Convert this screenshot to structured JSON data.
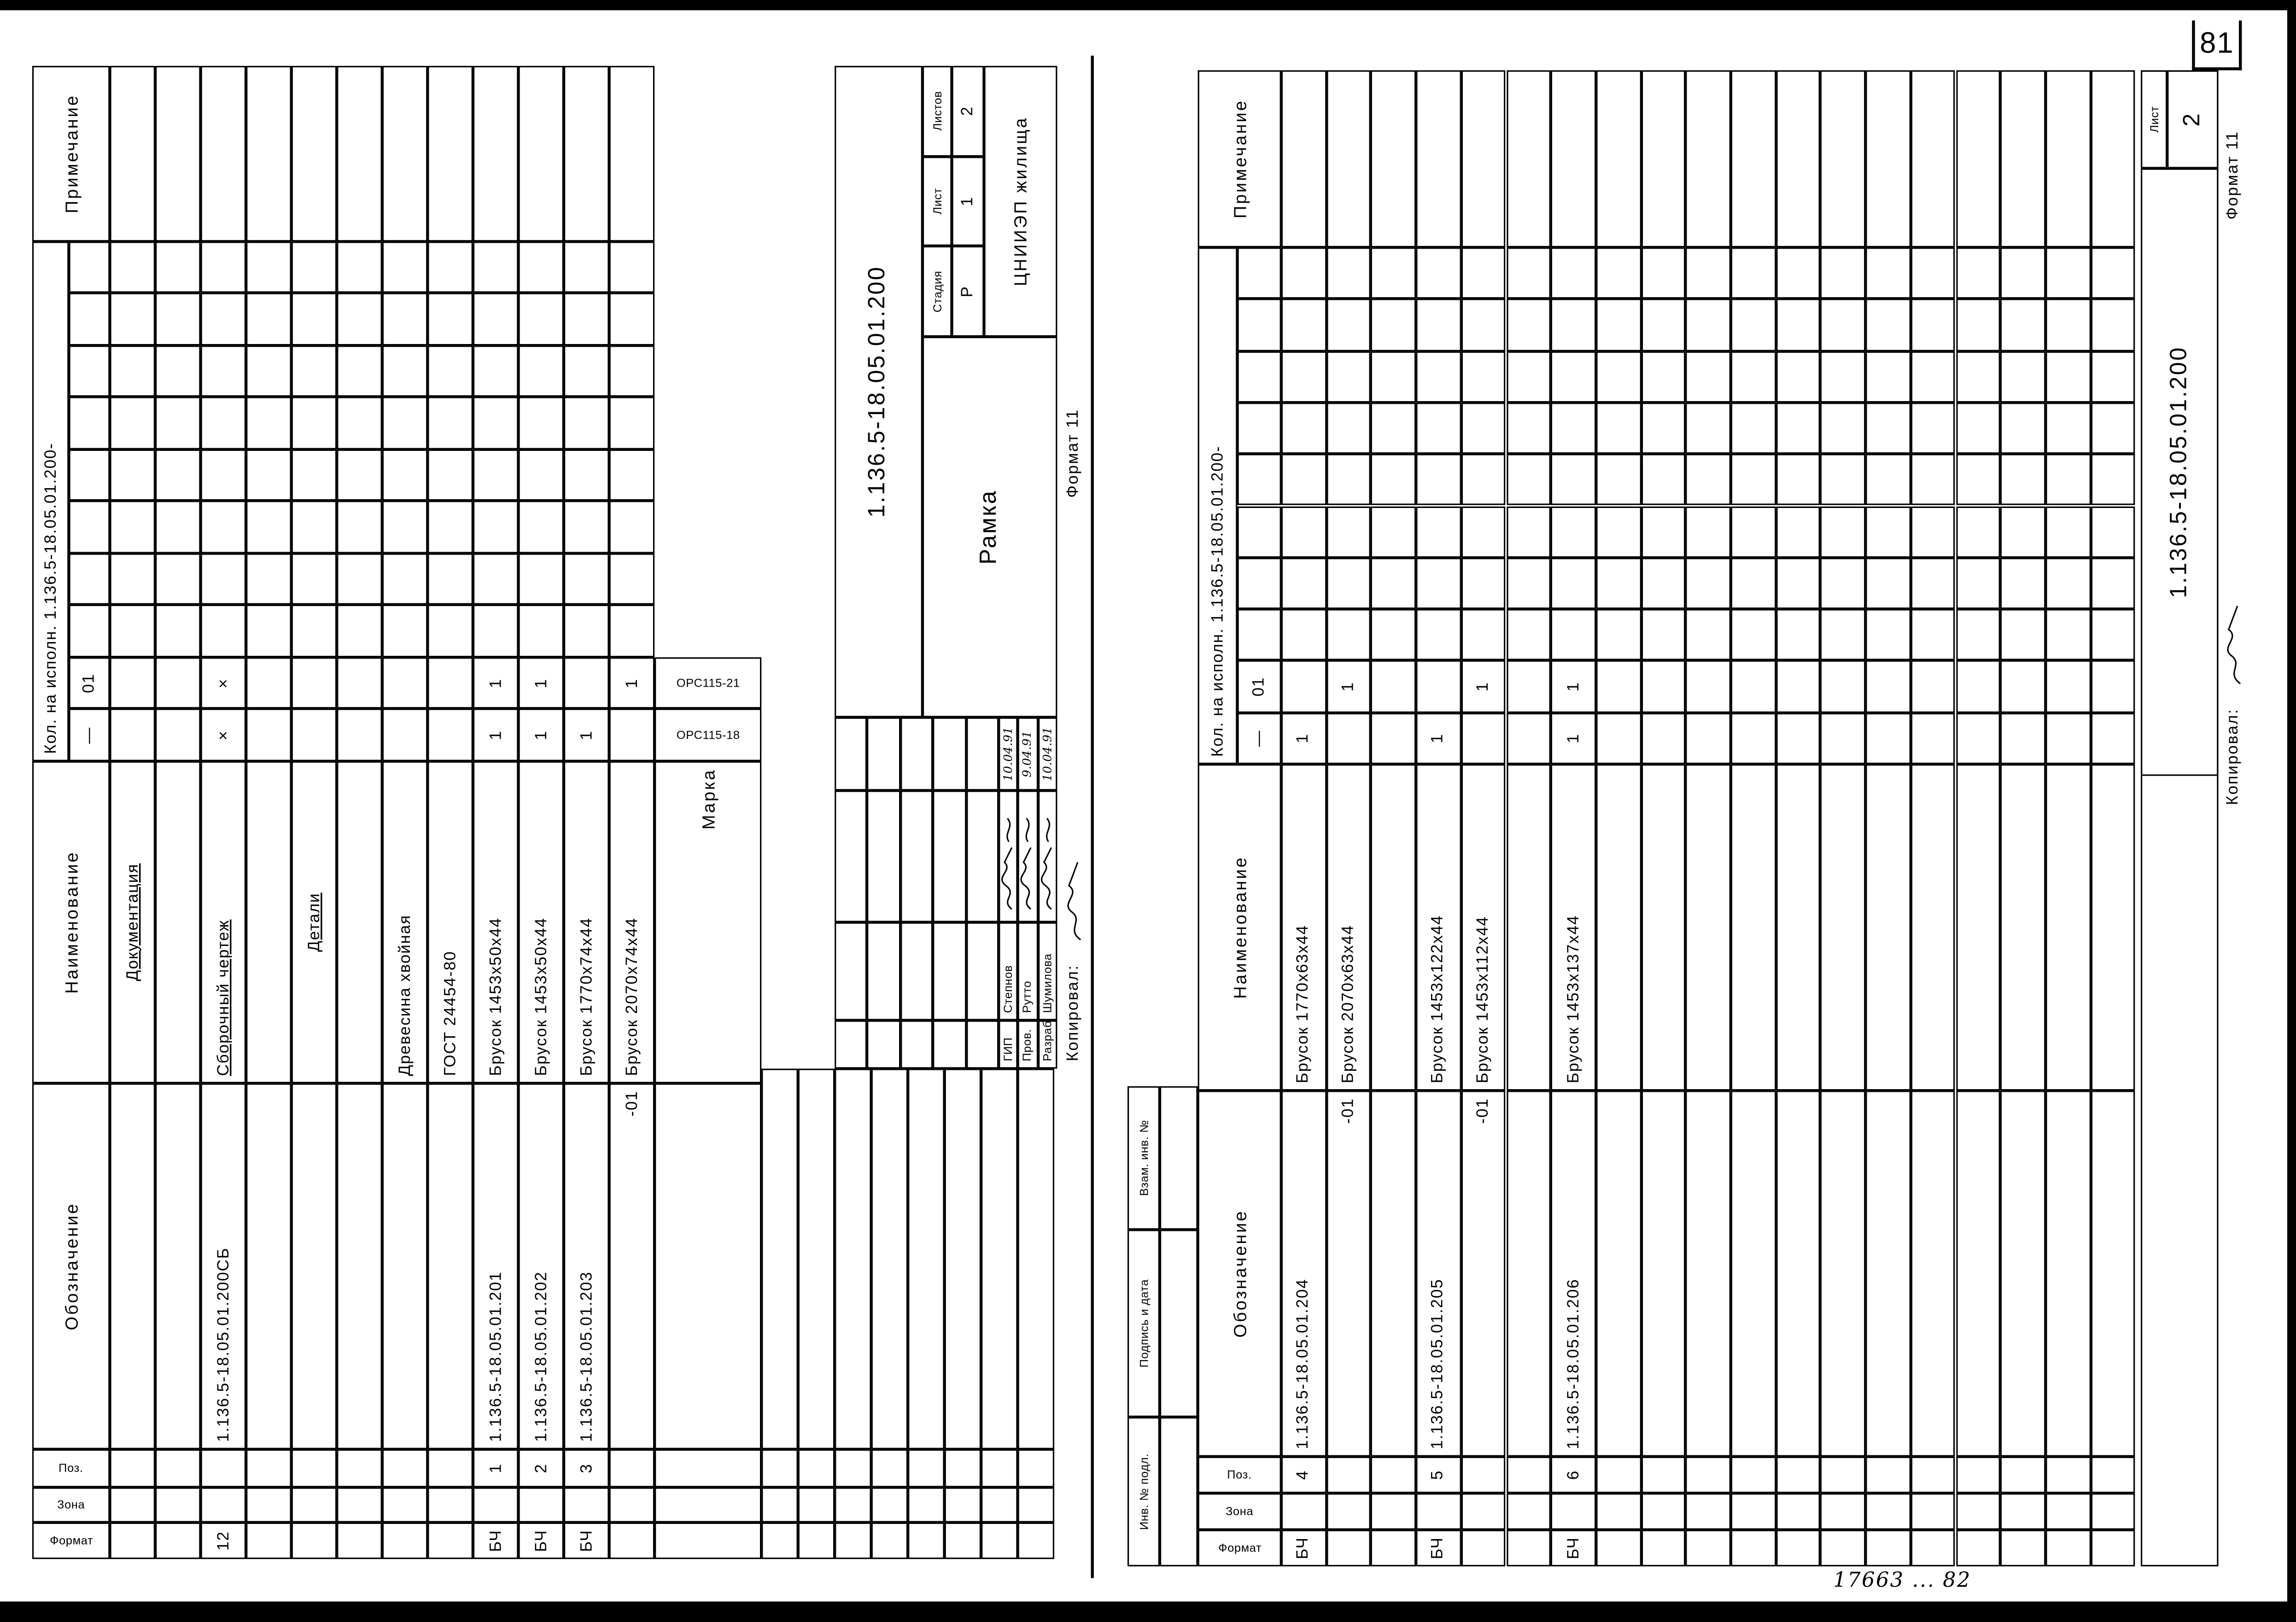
{
  "page_number": "81",
  "archive_number": "17663 ... 82",
  "left_sheet": {
    "headers": {
      "fmt": "Формат",
      "zone": "Зона",
      "pos": "Поз.",
      "designation": "Обозначение",
      "name": "Наименование",
      "qty": "Кол. на исполн. 1.136.5-18.05.01.200-",
      "qty_sub": [
        "—",
        "01"
      ],
      "note": "Примечание"
    },
    "rows": [
      {
        "name": "Документация",
        "underline": true,
        "center": true
      },
      {},
      {
        "fmt": "12",
        "des": "1.136.5-18.05.01.200СБ",
        "name": "Сборочный чертеж",
        "underline": true,
        "q": [
          "×",
          "×"
        ]
      },
      {},
      {
        "name": "Детали",
        "underline": true,
        "center": true
      },
      {},
      {
        "name": "Древесина хвойная"
      },
      {
        "name": "ГОСТ 24454-80"
      },
      {
        "fmt": "БЧ",
        "pos": "1",
        "des": "1.136.5-18.05.01.201",
        "name": "Брусок 1453x50x44",
        "q": [
          "1",
          "1"
        ]
      },
      {
        "fmt": "БЧ",
        "pos": "2",
        "des": "1.136.5-18.05.01.202",
        "name": "Брусок 1453x50x44",
        "q": [
          "1",
          "1"
        ]
      },
      {
        "fmt": "БЧ",
        "pos": "3",
        "des": "1.136.5-18.05.01.203",
        "name": "Брусок 1770x74x44",
        "q": [
          "1",
          ""
        ]
      },
      {
        "des": "-01",
        "des_right": true,
        "name": "Брусок 2070x74x44",
        "q": [
          "",
          "1"
        ]
      }
    ],
    "marka": {
      "label": "Марка",
      "values": [
        "ОРС115-18",
        "ОРС115-21"
      ]
    },
    "notes": {
      "copied": "Копировал:",
      "format": "Формат 11"
    }
  },
  "title_block": {
    "code": "1.136.5-18.05.01.200",
    "name": "Рамка",
    "stage_headers": [
      "Стадия",
      "Лист",
      "Листов"
    ],
    "stage_values": [
      "Р",
      "1",
      "2"
    ],
    "org": "ЦНИИЭП жилища",
    "staff": [
      {
        "role": "ГИП",
        "name": "Степнов",
        "date": "10.04.91"
      },
      {
        "role": "Пров.",
        "name": "Рутто",
        "date": "9.04.91"
      },
      {
        "role": "Разраб.",
        "name": "Шумилова",
        "date": "10.04.91"
      }
    ]
  },
  "right_sheet": {
    "headers": {
      "fmt": "Формат",
      "zone": "Зона",
      "pos": "Поз.",
      "designation": "Обозначение",
      "name": "Наименование",
      "qty": "Кол. на исполн. 1.136.5-18.05.01.200-",
      "qty_sub": [
        "—",
        "01"
      ],
      "note": "Примечание"
    },
    "rows": [
      {
        "fmt": "БЧ",
        "pos": "4",
        "des": "1.136.5-18.05.01.204",
        "name": "Брусок 1770x63x44",
        "q": [
          "1",
          ""
        ]
      },
      {
        "des": "-01",
        "des_right": true,
        "name": "Брусок 2070x63x44",
        "q": [
          "",
          "1"
        ]
      },
      {},
      {
        "fmt": "БЧ",
        "pos": "5",
        "des": "1.136.5-18.05.01.205",
        "name": "Брусок 1453x122x44",
        "q": [
          "1",
          ""
        ]
      },
      {
        "des": "-01",
        "des_right": true,
        "name": "Брусок 1453x112x44",
        "q": [
          "",
          "1"
        ]
      },
      {},
      {
        "fmt": "БЧ",
        "pos": "6",
        "des": "1.136.5-18.05.01.206",
        "name": "Брусок 1453x137x44",
        "q": [
          "1",
          "1"
        ]
      }
    ],
    "side_labels": [
      "Инв. № подл.",
      "Подпись и дата",
      "Взам. инв. №"
    ],
    "sheet_label": "Лист",
    "sheet_value": "2",
    "code": "1.136.5-18.05.01.200",
    "notes": {
      "copied": "Копировал:",
      "format": "Формат 11"
    }
  }
}
